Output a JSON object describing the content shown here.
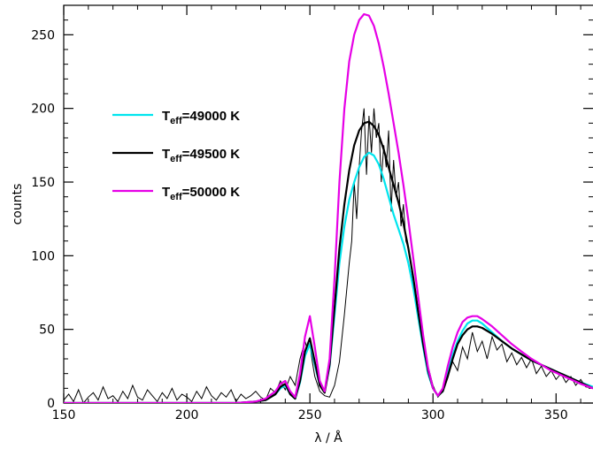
{
  "chart_data": {
    "type": "line",
    "title": "",
    "xlabel": "λ / Å",
    "ylabel": "counts",
    "xlim": [
      150,
      365
    ],
    "ylim": [
      0,
      270
    ],
    "xticks": [
      150,
      200,
      250,
      300,
      350
    ],
    "yticks": [
      0,
      50,
      100,
      150,
      200,
      250
    ],
    "xtick_labels": [
      "150",
      "200",
      "250",
      "300",
      "350"
    ],
    "ytick_labels": [
      "0",
      "50",
      "100",
      "150",
      "200",
      "250"
    ],
    "grid": false,
    "legend_position": "upper-left",
    "observed": {
      "x": [
        150,
        152,
        154,
        156,
        158,
        160,
        162,
        164,
        166,
        168,
        170,
        172,
        174,
        176,
        178,
        180,
        182,
        184,
        186,
        188,
        190,
        192,
        194,
        196,
        198,
        200,
        202,
        204,
        206,
        208,
        210,
        212,
        214,
        216,
        218,
        220,
        222,
        224,
        226,
        228,
        230,
        232,
        234,
        236,
        238,
        240,
        242,
        244,
        246,
        248,
        249,
        250,
        251,
        252,
        254,
        256,
        258,
        260,
        262,
        264,
        266,
        267,
        268,
        269,
        270,
        271,
        272,
        273,
        274,
        275,
        276,
        277,
        278,
        279,
        280,
        281,
        282,
        283,
        284,
        285,
        286,
        287,
        288,
        289,
        290,
        291,
        292,
        294,
        296,
        298,
        300,
        302,
        304,
        306,
        308,
        310,
        312,
        314,
        316,
        318,
        320,
        322,
        324,
        326,
        328,
        330,
        332,
        334,
        336,
        338,
        340,
        342,
        344,
        346,
        348,
        350,
        352,
        354,
        356,
        358,
        360,
        362,
        365
      ],
      "y": [
        2,
        6,
        1,
        9,
        0,
        4,
        7,
        2,
        11,
        3,
        5,
        1,
        8,
        3,
        12,
        4,
        2,
        9,
        5,
        1,
        7,
        3,
        10,
        2,
        6,
        4,
        1,
        8,
        3,
        11,
        5,
        2,
        7,
        4,
        9,
        1,
        6,
        3,
        5,
        8,
        4,
        2,
        10,
        7,
        15,
        9,
        18,
        12,
        30,
        42,
        36,
        40,
        28,
        18,
        8,
        5,
        4,
        12,
        28,
        60,
        95,
        110,
        150,
        125,
        160,
        185,
        200,
        155,
        195,
        170,
        200,
        180,
        190,
        150,
        175,
        160,
        185,
        130,
        165,
        140,
        150,
        120,
        135,
        110,
        105,
        95,
        80,
        60,
        45,
        25,
        12,
        4,
        8,
        18,
        28,
        22,
        38,
        30,
        48,
        35,
        42,
        30,
        45,
        36,
        40,
        28,
        34,
        26,
        31,
        24,
        30,
        20,
        25,
        18,
        22,
        16,
        20,
        14,
        18,
        12,
        16,
        11,
        10
      ]
    },
    "series": [
      {
        "name": "Teff=49000 K",
        "color": "#00e5ee",
        "values": [
          [
            150,
            0
          ],
          [
            220,
            0
          ],
          [
            228,
            1
          ],
          [
            232,
            2
          ],
          [
            236,
            6
          ],
          [
            238,
            10
          ],
          [
            240,
            12
          ],
          [
            242,
            6
          ],
          [
            244,
            3
          ],
          [
            246,
            14
          ],
          [
            248,
            32
          ],
          [
            250,
            40
          ],
          [
            252,
            26
          ],
          [
            254,
            12
          ],
          [
            256,
            8
          ],
          [
            258,
            25
          ],
          [
            260,
            60
          ],
          [
            262,
            95
          ],
          [
            264,
            120
          ],
          [
            266,
            138
          ],
          [
            268,
            150
          ],
          [
            270,
            160
          ],
          [
            272,
            167
          ],
          [
            274,
            170
          ],
          [
            276,
            168
          ],
          [
            278,
            162
          ],
          [
            280,
            152
          ],
          [
            282,
            140
          ],
          [
            284,
            128
          ],
          [
            286,
            118
          ],
          [
            288,
            108
          ],
          [
            290,
            95
          ],
          [
            292,
            78
          ],
          [
            294,
            58
          ],
          [
            296,
            38
          ],
          [
            298,
            20
          ],
          [
            300,
            10
          ],
          [
            302,
            5
          ],
          [
            304,
            8
          ],
          [
            306,
            20
          ],
          [
            308,
            33
          ],
          [
            310,
            42
          ],
          [
            312,
            49
          ],
          [
            314,
            54
          ],
          [
            316,
            56
          ],
          [
            318,
            56
          ],
          [
            320,
            54
          ],
          [
            324,
            48
          ],
          [
            328,
            42
          ],
          [
            332,
            37
          ],
          [
            336,
            33
          ],
          [
            340,
            29
          ],
          [
            344,
            26
          ],
          [
            348,
            23
          ],
          [
            352,
            20
          ],
          [
            356,
            17
          ],
          [
            360,
            14
          ],
          [
            365,
            11
          ]
        ]
      },
      {
        "name": "Teff=49500 K",
        "color": "#000000",
        "values": [
          [
            150,
            0
          ],
          [
            220,
            0
          ],
          [
            228,
            1
          ],
          [
            232,
            2
          ],
          [
            236,
            6
          ],
          [
            238,
            11
          ],
          [
            240,
            13
          ],
          [
            242,
            6
          ],
          [
            244,
            3
          ],
          [
            246,
            15
          ],
          [
            248,
            35
          ],
          [
            250,
            44
          ],
          [
            252,
            28
          ],
          [
            254,
            12
          ],
          [
            256,
            7
          ],
          [
            258,
            26
          ],
          [
            260,
            65
          ],
          [
            262,
            105
          ],
          [
            264,
            135
          ],
          [
            266,
            158
          ],
          [
            268,
            175
          ],
          [
            270,
            185
          ],
          [
            272,
            190
          ],
          [
            274,
            191
          ],
          [
            276,
            188
          ],
          [
            278,
            182
          ],
          [
            280,
            172
          ],
          [
            282,
            160
          ],
          [
            284,
            148
          ],
          [
            286,
            136
          ],
          [
            288,
            122
          ],
          [
            290,
            105
          ],
          [
            292,
            85
          ],
          [
            294,
            62
          ],
          [
            296,
            40
          ],
          [
            298,
            22
          ],
          [
            300,
            10
          ],
          [
            302,
            5
          ],
          [
            304,
            8
          ],
          [
            306,
            18
          ],
          [
            308,
            30
          ],
          [
            310,
            40
          ],
          [
            312,
            46
          ],
          [
            314,
            50
          ],
          [
            316,
            52
          ],
          [
            318,
            52
          ],
          [
            320,
            51
          ],
          [
            324,
            47
          ],
          [
            328,
            42
          ],
          [
            332,
            37
          ],
          [
            336,
            33
          ],
          [
            340,
            29
          ],
          [
            344,
            26
          ],
          [
            348,
            23
          ],
          [
            352,
            20
          ],
          [
            356,
            17
          ],
          [
            360,
            14
          ],
          [
            365,
            10
          ]
        ]
      },
      {
        "name": "Teff=50000 K",
        "color": "#e600e6",
        "values": [
          [
            150,
            0
          ],
          [
            220,
            0
          ],
          [
            228,
            1
          ],
          [
            232,
            3
          ],
          [
            236,
            8
          ],
          [
            238,
            13
          ],
          [
            240,
            15
          ],
          [
            242,
            8
          ],
          [
            244,
            4
          ],
          [
            246,
            20
          ],
          [
            248,
            45
          ],
          [
            250,
            59
          ],
          [
            252,
            38
          ],
          [
            254,
            15
          ],
          [
            256,
            8
          ],
          [
            258,
            30
          ],
          [
            260,
            85
          ],
          [
            262,
            150
          ],
          [
            264,
            200
          ],
          [
            266,
            232
          ],
          [
            268,
            250
          ],
          [
            270,
            260
          ],
          [
            272,
            264
          ],
          [
            274,
            263
          ],
          [
            276,
            256
          ],
          [
            278,
            244
          ],
          [
            280,
            228
          ],
          [
            282,
            210
          ],
          [
            284,
            190
          ],
          [
            286,
            170
          ],
          [
            288,
            148
          ],
          [
            290,
            124
          ],
          [
            292,
            98
          ],
          [
            294,
            72
          ],
          [
            296,
            46
          ],
          [
            298,
            24
          ],
          [
            300,
            10
          ],
          [
            302,
            5
          ],
          [
            304,
            10
          ],
          [
            306,
            25
          ],
          [
            308,
            38
          ],
          [
            310,
            48
          ],
          [
            312,
            55
          ],
          [
            314,
            58
          ],
          [
            316,
            59
          ],
          [
            318,
            59
          ],
          [
            320,
            57
          ],
          [
            324,
            52
          ],
          [
            328,
            46
          ],
          [
            332,
            40
          ],
          [
            336,
            35
          ],
          [
            340,
            30
          ],
          [
            344,
            26
          ],
          [
            348,
            22
          ],
          [
            352,
            19
          ],
          [
            356,
            16
          ],
          [
            360,
            13
          ],
          [
            365,
            10
          ]
        ]
      }
    ],
    "legend": [
      {
        "prefix": "T",
        "sub": "eff",
        "rest": "=49000  K",
        "color": "#00e5ee"
      },
      {
        "prefix": "T",
        "sub": "eff",
        "rest": "=49500  K",
        "color": "#000000"
      },
      {
        "prefix": "T",
        "sub": "eff",
        "rest": "=50000  K",
        "color": "#e600e6"
      }
    ]
  }
}
